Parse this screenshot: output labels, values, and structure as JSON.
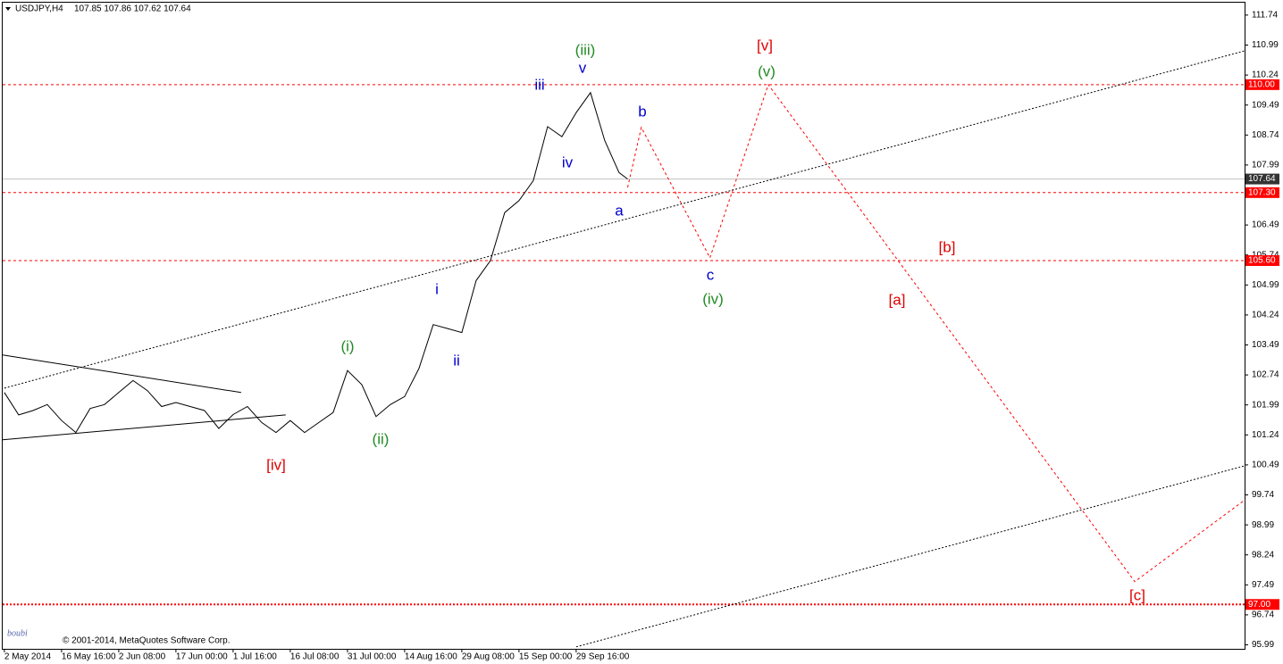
{
  "chart_data": {
    "type": "line",
    "title": "USDJPY,H4",
    "subtitle": "107.85 107.86 107.62 107.64",
    "copyright": "© 2001-2014, MetaQuotes Software Corp.",
    "signature": "boubi",
    "xlim": [
      -0.03,
      21.69
    ],
    "ylim": [
      95.89,
      112.05
    ],
    "yticks": [
      111.74,
      110.99,
      110.24,
      109.49,
      108.74,
      107.99,
      106.49,
      105.74,
      104.99,
      104.24,
      103.49,
      102.74,
      101.99,
      101.24,
      100.49,
      99.74,
      98.99,
      98.24,
      97.49,
      96.74,
      95.99
    ],
    "xticks": [
      {
        "value": 0,
        "label": "2 May 2014"
      },
      {
        "value": 1,
        "label": "16 May 16:00"
      },
      {
        "value": 2,
        "label": "2 Jun 08:00"
      },
      {
        "value": 3,
        "label": "17 Jun 00:00"
      },
      {
        "value": 4,
        "label": "1 Jul 16:00"
      },
      {
        "value": 5,
        "label": "16 Jul 08:00"
      },
      {
        "value": 6,
        "label": "31 Jul 00:00"
      },
      {
        "value": 7,
        "label": "14 Aug 16:00"
      },
      {
        "value": 8,
        "label": "29 Aug 08:00"
      },
      {
        "value": 9,
        "label": "15 Sep 00:00"
      },
      {
        "value": 10,
        "label": "29 Sep 16:00"
      }
    ],
    "series": [
      {
        "color": "#000000",
        "style": "solid",
        "x": [
          0,
          0.25,
          0.5,
          0.75,
          1,
          1.25,
          1.5,
          1.75,
          2,
          2.25,
          2.5,
          2.75,
          3,
          3.25,
          3.5,
          3.75,
          4,
          4.25,
          4.5,
          4.75,
          5,
          5.25,
          5.5,
          5.75,
          6,
          6.25,
          6.5,
          6.75,
          7,
          7.25,
          7.5,
          7.75,
          8,
          8.25,
          8.5,
          8.75,
          9,
          9.25,
          9.5,
          9.75,
          10,
          10.25,
          10.5,
          10.75,
          10.9
        ],
        "values": [
          102.3,
          101.74,
          101.85,
          102.0,
          101.6,
          101.3,
          101.9,
          102.0,
          102.3,
          102.6,
          102.35,
          101.95,
          102.05,
          101.95,
          101.85,
          101.4,
          101.75,
          101.95,
          101.55,
          101.3,
          101.6,
          101.3,
          101.55,
          101.8,
          102.85,
          102.5,
          101.7,
          102.0,
          102.2,
          102.9,
          104.0,
          103.9,
          103.8,
          105.1,
          105.6,
          106.8,
          107.1,
          107.6,
          108.95,
          108.7,
          109.3,
          109.8,
          108.6,
          107.8,
          107.64
        ]
      },
      {
        "color": "#ff0000",
        "style": "dashed",
        "x": [
          10.9,
          11.14,
          12.34,
          13.36,
          19.77,
          21.7
        ],
        "values": [
          107.43,
          108.93,
          105.67,
          110.0,
          97.57,
          99.62
        ]
      },
      {
        "color": "#000000",
        "style": "dotted",
        "x": [
          0,
          21.7
        ],
        "values": [
          102.41,
          110.85
        ]
      },
      {
        "color": "#000000",
        "style": "dotted",
        "x": [
          10.0,
          21.7
        ],
        "values": [
          95.94,
          100.47
        ]
      },
      {
        "color": "#000000",
        "style": "solid",
        "x": [
          -0.03,
          4.14
        ],
        "values": [
          103.24,
          102.3
        ]
      },
      {
        "color": "#000000",
        "style": "solid",
        "x": [
          -0.03,
          4.92
        ],
        "values": [
          101.12,
          101.74
        ]
      }
    ],
    "levels": [
      {
        "value": 110.0,
        "label": "110.00",
        "color": "#ff0000",
        "style": "dashed"
      },
      {
        "value": 107.64,
        "label": "107.64",
        "color": "#c0c0c0",
        "box": "#333333",
        "style": "solid"
      },
      {
        "value": 107.3,
        "label": "107.30",
        "color": "#ff0000",
        "style": "dashed"
      },
      {
        "value": 105.6,
        "label": "105.60",
        "color": "#ff0000",
        "style": "dashed"
      },
      {
        "value": 97.0,
        "label": "97.00",
        "color": "#ff0000",
        "style": "dotted"
      }
    ],
    "annotations": [
      {
        "text": "(iii)",
        "color": "#228b22"
      },
      {
        "text": "v",
        "color": "#0000cd"
      },
      {
        "text": "iii",
        "color": "#0000cd"
      },
      {
        "text": "iv",
        "color": "#0000cd"
      },
      {
        "text": "b",
        "color": "#0000cd"
      },
      {
        "text": "a",
        "color": "#0000cd"
      },
      {
        "text": "c",
        "color": "#0000cd"
      },
      {
        "text": "(iv)",
        "color": "#228b22"
      },
      {
        "text": "[v]",
        "color": "#e00000"
      },
      {
        "text": "(v)",
        "color": "#228b22"
      },
      {
        "text": "[b]",
        "color": "#e00000"
      },
      {
        "text": "[a]",
        "color": "#e00000"
      },
      {
        "text": "[c]",
        "color": "#e00000"
      },
      {
        "text": "i",
        "color": "#0000cd"
      },
      {
        "text": "ii",
        "color": "#0000cd"
      },
      {
        "text": "(i)",
        "color": "#228b22"
      },
      {
        "text": "(ii)",
        "color": "#228b22"
      },
      {
        "text": "[iv]",
        "color": "#e00000"
      }
    ]
  }
}
